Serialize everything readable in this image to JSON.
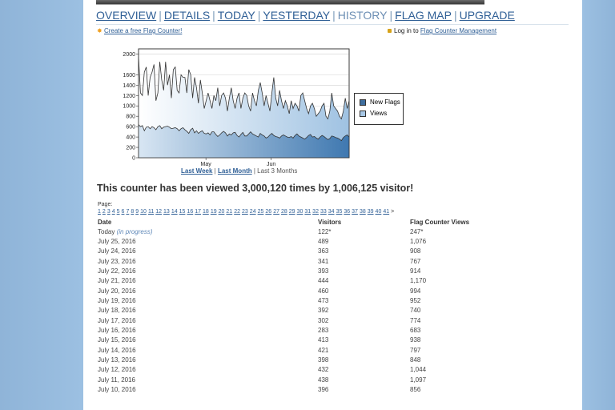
{
  "nav": {
    "items": [
      "OVERVIEW",
      "DETAILS",
      "TODAY",
      "YESTERDAY",
      "HISTORY",
      "FLAG MAP",
      "UPGRADE"
    ],
    "current": "HISTORY"
  },
  "sub": {
    "create_link": "Create a free Flag Counter!",
    "login_prefix": "Log in to ",
    "login_link": "Flag Counter Management"
  },
  "chart_data": {
    "type": "area",
    "x_ticks": [
      "May",
      "Jun"
    ],
    "y_ticks": [
      0,
      200,
      400,
      600,
      800,
      1000,
      1200,
      1400,
      1600,
      2000
    ],
    "ylim": [
      0,
      2100
    ],
    "grid": true,
    "legend_placement": "right",
    "series": [
      {
        "name": "New Flags",
        "color": "#3f6f9f",
        "values": [
          640,
          600,
          620,
          520,
          590,
          600,
          560,
          600,
          580,
          540,
          600,
          620,
          560,
          590,
          600,
          610,
          590,
          560,
          570,
          580,
          560,
          520,
          560,
          580,
          540,
          510,
          470,
          540,
          570,
          480,
          520,
          470,
          500,
          520,
          470,
          460,
          480,
          440,
          500,
          500,
          450,
          410,
          440,
          480,
          510,
          480,
          420,
          460,
          440,
          480,
          490,
          430,
          400,
          450,
          490,
          420,
          420,
          460,
          500,
          460,
          440,
          420,
          400,
          470,
          440,
          420,
          380,
          400,
          440,
          470,
          430,
          410,
          400,
          380,
          420,
          440,
          420,
          400,
          390,
          410,
          380,
          430,
          460,
          420,
          400,
          380,
          360,
          390,
          430,
          450,
          400,
          410,
          380,
          360,
          400,
          430,
          410,
          380,
          350,
          370,
          420,
          410,
          390,
          380,
          360,
          330,
          390,
          420,
          440,
          400
        ]
      },
      {
        "name": "Views",
        "color": "#a8c8e6",
        "values": [
          1950,
          1250,
          1200,
          1650,
          1750,
          1200,
          1550,
          1650,
          1800,
          1100,
          1250,
          1850,
          1500,
          1300,
          1850,
          1400,
          1600,
          1150,
          1700,
          1750,
          1300,
          1250,
          1600,
          1550,
          1550,
          1250,
          1700,
          1600,
          1150,
          1550,
          1350,
          1050,
          1500,
          1250,
          950,
          1100,
          1250,
          1100,
          950,
          1200,
          1100,
          1350,
          1000,
          1200,
          1250,
          1150,
          900,
          1150,
          1350,
          1100,
          950,
          1150,
          1250,
          950,
          1150,
          1250,
          1200,
          1000,
          900,
          1250,
          1100,
          1000,
          1300,
          1450,
          1250,
          1000,
          1200,
          1050,
          900,
          1250,
          1550,
          1150,
          1000,
          1300,
          1100,
          950,
          1100,
          1000,
          850,
          1100,
          950,
          1050,
          1000,
          900,
          1200,
          1250,
          1100,
          950,
          850,
          1000,
          1050,
          950,
          800,
          850,
          900,
          1000,
          1050,
          800,
          750,
          900,
          1250,
          1000,
          950,
          900,
          800,
          750,
          900,
          1150,
          950,
          1100
        ]
      }
    ]
  },
  "time_links": {
    "week": "Last Week",
    "sep1": " | ",
    "month": "Last Month",
    "sep2": " | ",
    "three_months": "Last 3 Months"
  },
  "headline": "This counter has been viewed 3,000,120 times by 1,006,125 visitor!",
  "pages": {
    "label": "Page: ",
    "numbers": [
      "1",
      "2",
      "3",
      "4",
      "5",
      "6",
      "7",
      "8",
      "9",
      "10",
      "11",
      "12",
      "13",
      "14",
      "15",
      "16",
      "17",
      "18",
      "19",
      "20",
      "21",
      "22",
      "23",
      "24",
      "25",
      "26",
      "27",
      "28",
      "29",
      "30",
      "31",
      "32",
      "33",
      "34",
      "35",
      "36",
      "37",
      "38",
      "39",
      "40",
      "41"
    ],
    "next": ">"
  },
  "table": {
    "headers": [
      "Date",
      "Visitors",
      "Flag Counter Views"
    ],
    "today_label": "Today",
    "today_note": "(in progress)",
    "today_visitors": "122*",
    "today_views": "247*",
    "rows": [
      [
        "July 25, 2016",
        "489",
        "1,076"
      ],
      [
        "July 24, 2016",
        "363",
        "908"
      ],
      [
        "July 23, 2016",
        "341",
        "767"
      ],
      [
        "July 22, 2016",
        "393",
        "914"
      ],
      [
        "July 21, 2016",
        "444",
        "1,170"
      ],
      [
        "July 20, 2016",
        "460",
        "994"
      ],
      [
        "July 19, 2016",
        "473",
        "952"
      ],
      [
        "July 18, 2016",
        "392",
        "740"
      ],
      [
        "July 17, 2016",
        "302",
        "774"
      ],
      [
        "July 16, 2016",
        "283",
        "683"
      ],
      [
        "July 15, 2016",
        "413",
        "938"
      ],
      [
        "July 14, 2016",
        "421",
        "797"
      ],
      [
        "July 13, 2016",
        "398",
        "848"
      ],
      [
        "July 12, 2016",
        "432",
        "1,044"
      ],
      [
        "July 11, 2016",
        "438",
        "1,097"
      ],
      [
        "July 10, 2016",
        "396",
        "856"
      ]
    ]
  }
}
